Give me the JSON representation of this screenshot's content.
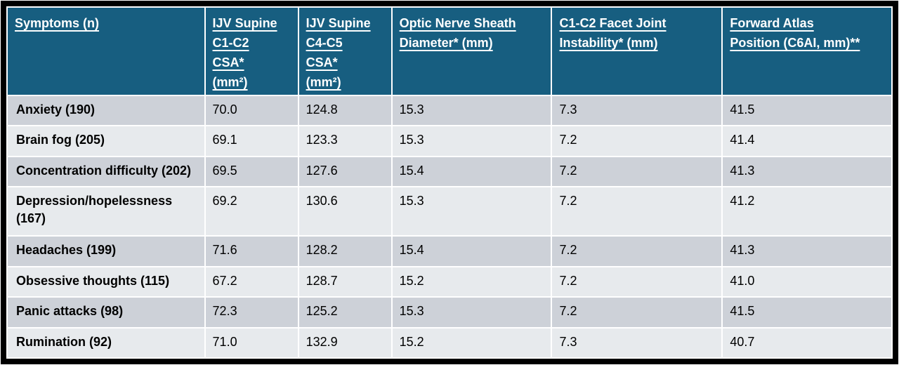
{
  "colors": {
    "header_bg": "#175E80",
    "header_text": "#FFFFFF",
    "row_dark": "#CDD1D8",
    "row_light": "#E7EAED",
    "body_text": "#000000",
    "frame": "#000000",
    "grid_gap": "#FFFFFF"
  },
  "chart_data": {
    "type": "table",
    "columns": [
      "Symptoms (n)",
      "IJV Supine C1-C2 CSA* (mm²)",
      "IJV Supine C4-C5 CSA* (mm²)",
      "Optic Nerve Sheath Diameter* (mm)",
      "C1-C2 Facet Joint Instability* (mm)",
      "Forward Atlas Position (C6AI, mm)**"
    ],
    "header_lines": [
      [
        "Symptoms (n)"
      ],
      [
        "IJV Supine",
        "C1-C2",
        "CSA*",
        "(mm²)"
      ],
      [
        "IJV Supine",
        "C4-C5",
        "CSA*",
        "(mm²)"
      ],
      [
        "Optic Nerve Sheath",
        "Diameter* (mm)"
      ],
      [
        "C1-C2 Facet Joint",
        "Instability* (mm)"
      ],
      [
        "Forward Atlas",
        "Position (C6AI, mm)**"
      ]
    ],
    "rows": [
      {
        "symptom": "Anxiety (190)",
        "values": [
          "70.0",
          "124.8",
          "15.3",
          "7.3",
          "41.5"
        ]
      },
      {
        "symptom": "Brain fog (205)",
        "values": [
          "69.1",
          "123.3",
          "15.3",
          "7.2",
          "41.4"
        ]
      },
      {
        "symptom": "Concentration difficulty (202)",
        "values": [
          "69.5",
          "127.6",
          "15.4",
          "7.2",
          "41.3"
        ]
      },
      {
        "symptom": "Depression/hopelessness (167)",
        "values": [
          "69.2",
          "130.6",
          "15.3",
          "7.2",
          "41.2"
        ]
      },
      {
        "symptom": "Headaches (199)",
        "values": [
          "71.6",
          "128.2",
          "15.4",
          "7.2",
          "41.3"
        ]
      },
      {
        "symptom": "Obsessive thoughts (115)",
        "values": [
          "67.2",
          "128.7",
          "15.2",
          "7.2",
          "41.0"
        ]
      },
      {
        "symptom": "Panic attacks (98)",
        "values": [
          "72.3",
          "125.2",
          "15.3",
          "7.2",
          "41.5"
        ]
      },
      {
        "symptom": "Rumination (92)",
        "values": [
          "71.0",
          "132.9",
          "15.2",
          "7.3",
          "40.7"
        ]
      }
    ]
  }
}
